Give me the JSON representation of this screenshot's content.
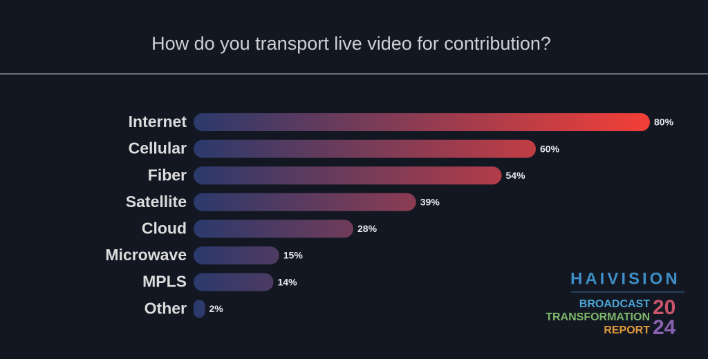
{
  "chart_data": {
    "type": "bar",
    "orientation": "horizontal",
    "title": "How do you transport live video for contribution?",
    "categories": [
      "Internet",
      "Cellular",
      "Fiber",
      "Satellite",
      "Cloud",
      "Microwave",
      "MPLS",
      "Other"
    ],
    "values": [
      80,
      60,
      54,
      39,
      28,
      15,
      14,
      2
    ],
    "value_labels": [
      "80%",
      "60%",
      "54%",
      "39%",
      "28%",
      "15%",
      "14%",
      "2%"
    ],
    "gradient": [
      "#2a3a6c",
      "#f43e37"
    ]
  },
  "logo": {
    "brand": "HAIVISION",
    "lines": [
      "BROADCAST",
      "TRANSFORMATION",
      "REPORT"
    ],
    "year": [
      "20",
      "24"
    ]
  }
}
